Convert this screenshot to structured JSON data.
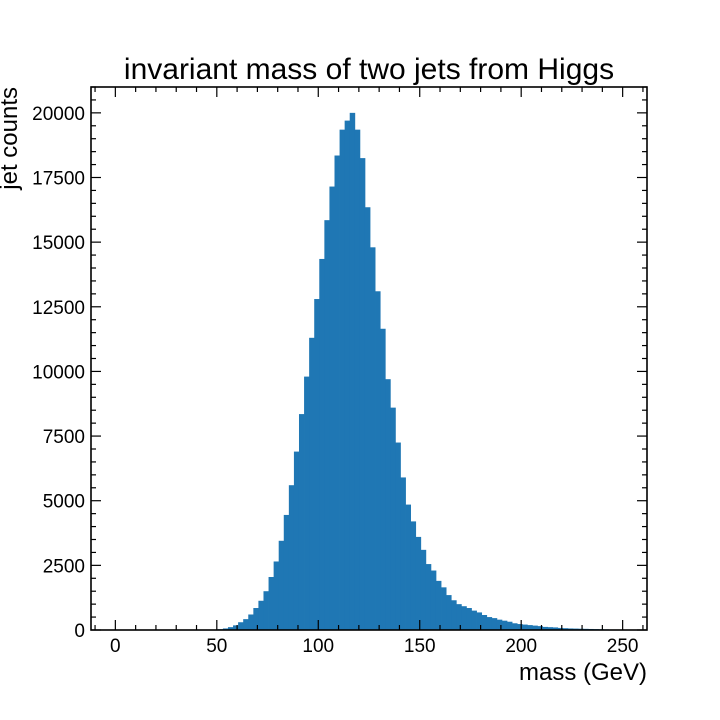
{
  "chart_data": {
    "type": "bar",
    "title": "invariant mass of two jets from Higgs",
    "xlabel": "mass (GeV)",
    "ylabel": "jet counts",
    "xlim": [
      -12,
      262
    ],
    "ylim": [
      0,
      21000
    ],
    "xticks": [
      0,
      50,
      100,
      150,
      200,
      250
    ],
    "xtick_labels": [
      "0",
      "50",
      "100",
      "150",
      "200",
      "250"
    ],
    "yticks": [
      0,
      2500,
      5000,
      7500,
      10000,
      12500,
      15000,
      17500,
      20000
    ],
    "ytick_labels": [
      "0",
      "2500",
      "5000",
      "7500",
      "10000",
      "12500",
      "15000",
      "17500",
      "20000"
    ],
    "grid": false,
    "bin_start": -12,
    "bin_width": 2.5,
    "values": [
      0,
      0,
      0,
      0,
      0,
      0,
      0,
      0,
      0,
      0,
      0,
      0,
      0,
      0,
      0,
      0,
      0,
      0,
      0,
      0,
      0,
      0,
      0,
      0,
      10,
      30,
      60,
      110,
      180,
      300,
      420,
      600,
      850,
      1130,
      1500,
      2050,
      2650,
      3450,
      4450,
      5600,
      6900,
      8350,
      9800,
      11300,
      12800,
      14350,
      15850,
      17150,
      18350,
      19350,
      19700,
      20000,
      19350,
      18250,
      16350,
      14800,
      13100,
      11650,
      9700,
      8600,
      7250,
      5900,
      4850,
      4200,
      3600,
      3100,
      2550,
      2300,
      1900,
      1650,
      1350,
      1150,
      1000,
      920,
      850,
      750,
      680,
      580,
      500,
      460,
      400,
      360,
      320,
      260,
      230,
      210,
      190,
      170,
      150,
      120,
      110,
      100,
      80,
      70,
      60,
      55,
      50,
      45,
      40,
      35,
      30,
      25,
      20,
      20,
      15,
      10,
      10,
      8,
      6,
      0
    ],
    "colors": {
      "bar": "#1f77b4",
      "frame": "#000000",
      "background": "#ffffff"
    }
  }
}
